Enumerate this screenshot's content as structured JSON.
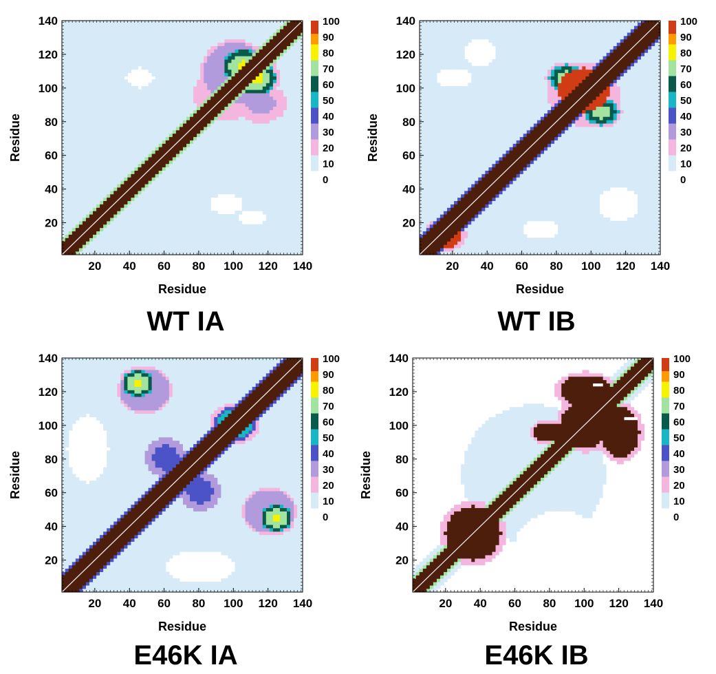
{
  "figure": {
    "panels": [
      {
        "id": "wt-ia",
        "title": "WT IA"
      },
      {
        "id": "wt-ib",
        "title": "WT IB"
      },
      {
        "id": "e46k-ia",
        "title": "E46K IA"
      },
      {
        "id": "e46k-ib",
        "title": "E46K IB"
      }
    ]
  },
  "chart_data": [
    {
      "type": "heatmap",
      "title": "WT IA",
      "xlabel": "Residue",
      "ylabel": "Residue",
      "xlim": [
        1,
        140
      ],
      "ylim": [
        1,
        140
      ],
      "x_ticks": [
        20,
        40,
        60,
        80,
        100,
        120,
        140
      ],
      "y_ticks": [
        20,
        40,
        60,
        80,
        100,
        120,
        140
      ],
      "colorbar_ticks": [
        100,
        90,
        80,
        70,
        60,
        50,
        40,
        30,
        20,
        10,
        0
      ],
      "colorscale": [
        {
          "value": 0,
          "color": "#ffffff"
        },
        {
          "value": 5,
          "color": "#d6ebf7"
        },
        {
          "value": 15,
          "color": "#f4b6de"
        },
        {
          "value": 25,
          "color": "#b29bdc"
        },
        {
          "value": 35,
          "color": "#4b53c7"
        },
        {
          "value": 45,
          "color": "#18b7c6"
        },
        {
          "value": 55,
          "color": "#0a5a4c"
        },
        {
          "value": 65,
          "color": "#a3e3a0"
        },
        {
          "value": 75,
          "color": "#f6f200"
        },
        {
          "value": 85,
          "color": "#ff9a00"
        },
        {
          "value": 92,
          "color": "#d23c14"
        },
        {
          "value": 100,
          "color": "#4e1e0c"
        }
      ],
      "diagonal_color": "#e8e8e8",
      "background_level": 5,
      "diagonal_band": {
        "peak": 100,
        "width": 7,
        "edge_width": 3
      },
      "blobs": [
        {
          "cx": 105,
          "cy": 112,
          "rx": 12,
          "ry": 10,
          "level": 78
        },
        {
          "cx": 112,
          "cy": 105,
          "rx": 12,
          "ry": 10,
          "level": 78
        },
        {
          "cx": 100,
          "cy": 108,
          "rx": 20,
          "ry": 20,
          "level": 35
        },
        {
          "cx": 95,
          "cy": 95,
          "rx": 28,
          "ry": 22,
          "level": 18
        },
        {
          "cx": 40,
          "cy": 40,
          "rx": 15,
          "ry": 12,
          "level": 15
        },
        {
          "cx": 115,
          "cy": 90,
          "rx": 15,
          "ry": 12,
          "level": 28
        }
      ],
      "holes": [
        {
          "cx": 45,
          "cy": 105,
          "rx": 8,
          "ry": 6
        },
        {
          "cx": 95,
          "cy": 30,
          "rx": 10,
          "ry": 6
        },
        {
          "cx": 110,
          "cy": 22,
          "rx": 8,
          "ry": 5
        }
      ]
    },
    {
      "type": "heatmap",
      "title": "WT IB",
      "xlabel": "Residue",
      "ylabel": "Residue",
      "xlim": [
        1,
        140
      ],
      "ylim": [
        1,
        140
      ],
      "x_ticks": [
        20,
        40,
        60,
        80,
        100,
        120,
        140
      ],
      "y_ticks": [
        20,
        40,
        60,
        80,
        100,
        120,
        140
      ],
      "colorbar_ticks": [
        100,
        90,
        80,
        70,
        60,
        50,
        40,
        30,
        20,
        10,
        0
      ],
      "colorscale": [
        {
          "value": 0,
          "color": "#ffffff"
        },
        {
          "value": 5,
          "color": "#d6ebf7"
        },
        {
          "value": 15,
          "color": "#f4b6de"
        },
        {
          "value": 25,
          "color": "#b29bdc"
        },
        {
          "value": 35,
          "color": "#4b53c7"
        },
        {
          "value": 45,
          "color": "#18b7c6"
        },
        {
          "value": 55,
          "color": "#0a5a4c"
        },
        {
          "value": 65,
          "color": "#a3e3a0"
        },
        {
          "value": 75,
          "color": "#f6f200"
        },
        {
          "value": 85,
          "color": "#ff9a00"
        },
        {
          "value": 92,
          "color": "#d23c14"
        },
        {
          "value": 100,
          "color": "#4e1e0c"
        }
      ],
      "diagonal_color": "#e8e8e8",
      "background_level": 5,
      "diagonal_band": {
        "peak": 100,
        "width": 8,
        "edge_width": 3
      },
      "blobs": [
        {
          "cx": 95,
          "cy": 98,
          "rx": 15,
          "ry": 13,
          "level": 95
        },
        {
          "cx": 85,
          "cy": 105,
          "rx": 10,
          "ry": 8,
          "level": 72
        },
        {
          "cx": 105,
          "cy": 85,
          "rx": 10,
          "ry": 8,
          "level": 72
        },
        {
          "cx": 95,
          "cy": 95,
          "rx": 25,
          "ry": 22,
          "level": 20
        },
        {
          "cx": 15,
          "cy": 12,
          "rx": 10,
          "ry": 8,
          "level": 92
        }
      ],
      "holes": [
        {
          "cx": 35,
          "cy": 120,
          "rx": 10,
          "ry": 8
        },
        {
          "cx": 20,
          "cy": 105,
          "rx": 10,
          "ry": 6
        },
        {
          "cx": 70,
          "cy": 15,
          "rx": 10,
          "ry": 6
        },
        {
          "cx": 115,
          "cy": 30,
          "rx": 12,
          "ry": 10
        }
      ]
    },
    {
      "type": "heatmap",
      "title": "E46K IA",
      "xlabel": "Residue",
      "ylabel": "Residue",
      "xlim": [
        1,
        140
      ],
      "ylim": [
        1,
        140
      ],
      "x_ticks": [
        20,
        40,
        60,
        80,
        100,
        120,
        140
      ],
      "y_ticks": [
        20,
        40,
        60,
        80,
        100,
        120,
        140
      ],
      "colorbar_ticks": [
        100,
        90,
        80,
        70,
        60,
        50,
        40,
        30,
        20,
        10,
        0
      ],
      "colorscale": [
        {
          "value": 0,
          "color": "#ffffff"
        },
        {
          "value": 5,
          "color": "#d6ebf7"
        },
        {
          "value": 15,
          "color": "#f4b6de"
        },
        {
          "value": 25,
          "color": "#b29bdc"
        },
        {
          "value": 35,
          "color": "#4b53c7"
        },
        {
          "value": 45,
          "color": "#18b7c6"
        },
        {
          "value": 55,
          "color": "#0a5a4c"
        },
        {
          "value": 65,
          "color": "#a3e3a0"
        },
        {
          "value": 75,
          "color": "#f6f200"
        },
        {
          "value": 85,
          "color": "#ff9a00"
        },
        {
          "value": 92,
          "color": "#d23c14"
        },
        {
          "value": 100,
          "color": "#4e1e0c"
        }
      ],
      "diagonal_color": "#e8e8e8",
      "background_level": 5,
      "diagonal_band": {
        "peak": 100,
        "width": 8,
        "edge_width": 3
      },
      "blobs": [
        {
          "cx": 44,
          "cy": 124,
          "rx": 9,
          "ry": 8,
          "level": 78
        },
        {
          "cx": 124,
          "cy": 44,
          "rx": 9,
          "ry": 8,
          "level": 78
        },
        {
          "cx": 48,
          "cy": 120,
          "rx": 16,
          "ry": 14,
          "level": 35
        },
        {
          "cx": 120,
          "cy": 48,
          "rx": 16,
          "ry": 14,
          "level": 35
        },
        {
          "cx": 100,
          "cy": 100,
          "rx": 12,
          "ry": 10,
          "level": 60
        },
        {
          "cx": 60,
          "cy": 80,
          "rx": 12,
          "ry": 12,
          "level": 40
        },
        {
          "cx": 80,
          "cy": 60,
          "rx": 12,
          "ry": 12,
          "level": 40
        },
        {
          "cx": 70,
          "cy": 70,
          "rx": 45,
          "ry": 45,
          "level": 15
        }
      ],
      "holes": [
        {
          "cx": 15,
          "cy": 85,
          "rx": 12,
          "ry": 20
        },
        {
          "cx": 80,
          "cy": 15,
          "rx": 20,
          "ry": 10
        }
      ]
    },
    {
      "type": "heatmap",
      "title": "E46K IB",
      "xlabel": "Residue",
      "ylabel": "Residue",
      "xlim": [
        1,
        140
      ],
      "ylim": [
        1,
        140
      ],
      "x_ticks": [
        20,
        40,
        60,
        80,
        100,
        120,
        140
      ],
      "y_ticks": [
        20,
        40,
        60,
        80,
        100,
        120,
        140
      ],
      "colorbar_ticks": [
        100,
        90,
        80,
        70,
        60,
        50,
        40,
        30,
        20,
        10,
        0
      ],
      "colorscale": [
        {
          "value": 0,
          "color": "#ffffff"
        },
        {
          "value": 5,
          "color": "#d6ebf7"
        },
        {
          "value": 15,
          "color": "#f4b6de"
        },
        {
          "value": 25,
          "color": "#b29bdc"
        },
        {
          "value": 35,
          "color": "#4b53c7"
        },
        {
          "value": 45,
          "color": "#18b7c6"
        },
        {
          "value": 55,
          "color": "#0a5a4c"
        },
        {
          "value": 65,
          "color": "#a3e3a0"
        },
        {
          "value": 75,
          "color": "#f6f200"
        },
        {
          "value": 85,
          "color": "#ff9a00"
        },
        {
          "value": 92,
          "color": "#d23c14"
        },
        {
          "value": 100,
          "color": "#4e1e0c"
        }
      ],
      "diagonal_color": "#e8e8e8",
      "background_level": 0,
      "diagonal_band": {
        "peak": 100,
        "width": 7,
        "edge_width": 3
      },
      "blobs": [
        {
          "cx": 35,
          "cy": 35,
          "rx": 16,
          "ry": 16,
          "level": 100
        },
        {
          "cx": 100,
          "cy": 120,
          "rx": 15,
          "ry": 9,
          "level": 100
        },
        {
          "cx": 120,
          "cy": 95,
          "rx": 11,
          "ry": 15,
          "level": 100
        },
        {
          "cx": 100,
          "cy": 100,
          "rx": 14,
          "ry": 14,
          "level": 100
        },
        {
          "cx": 80,
          "cy": 95,
          "rx": 10,
          "ry": 6,
          "level": 100
        },
        {
          "cx": 70,
          "cy": 70,
          "rx": 60,
          "ry": 60,
          "level": 6
        }
      ],
      "holes": [
        {
          "cx": 108,
          "cy": 123,
          "rx": 3,
          "ry": 2
        },
        {
          "cx": 126,
          "cy": 103,
          "rx": 3,
          "ry": 2
        },
        {
          "cx": 20,
          "cy": 110,
          "rx": 18,
          "ry": 25
        },
        {
          "cx": 85,
          "cy": 30,
          "rx": 25,
          "ry": 18
        }
      ]
    }
  ]
}
